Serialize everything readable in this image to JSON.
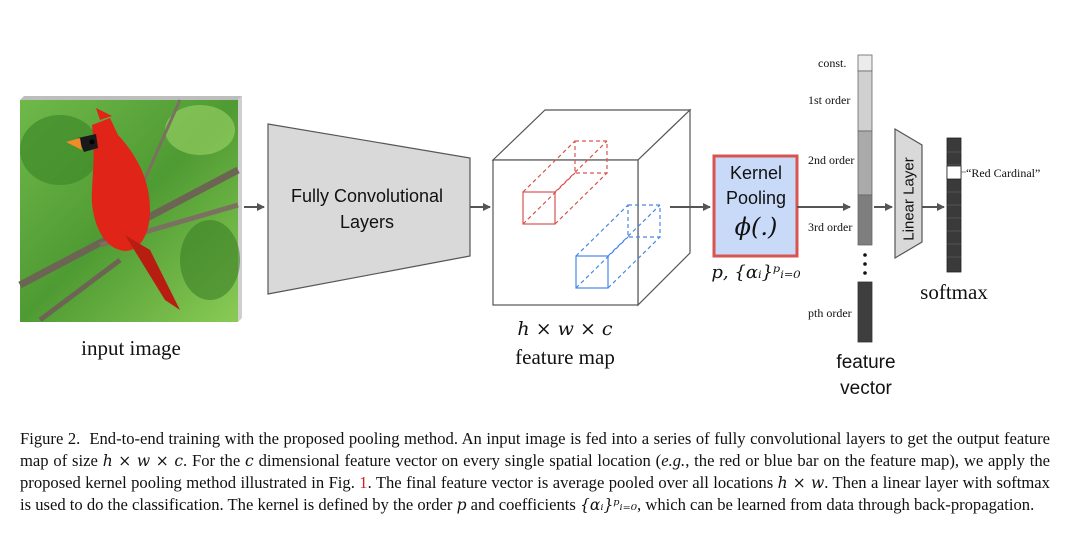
{
  "labels": {
    "input_image": "input image",
    "fc_layers_line1": "Fully Convolutional",
    "fc_layers_line2": "Layers",
    "feature_map_dims": "h × w × c",
    "feature_map": "feature map",
    "kernel_pooling_line1": "Kernel",
    "kernel_pooling_line2": "Pooling",
    "kernel_pooling_func": "ϕ(.)",
    "pooling_params": "p, {αᵢ}ᵖᵢ₌₀",
    "const": "const.",
    "order1": "1st order",
    "order2": "2nd order",
    "order3": "3rd order",
    "orderp": "pth order",
    "feature_vector_line1": "feature",
    "feature_vector_line2": "vector",
    "linear_layer": "Linear Layer",
    "red_cardinal": "“Red Cardinal”",
    "softmax": "softmax"
  },
  "colors": {
    "kernel_box_border": "#d9534f",
    "kernel_box_fill": "#c9daf8",
    "red_bar": "#d9534f",
    "blue_bar": "#4a86e8",
    "gray_block": "#d9d9d9",
    "arrow": "#555555"
  },
  "caption": {
    "fig_label": "Figure 2.",
    "s1": "End-to-end training with the proposed pooling method. An input image is fed into a series of fully convolutional layers to get the output feature map of size",
    "math_hwc": "h × w × c",
    "s2": ". For the",
    "math_c": "c",
    "s3": "dimensional feature vector on every single spatial location (",
    "eg": "e.g.",
    "s4": ", the red or blue bar on the feature map), we apply the proposed kernel pooling method illustrated in Fig.",
    "fig_ref": "1",
    "s5": ". The final feature vector is average pooled over all locations",
    "math_hw": "h × w",
    "s6": ". Then a linear layer with softmax is used to do the classification. The kernel is defined by the order",
    "math_p": "p",
    "s7": "and coefficients",
    "math_alpha": "{αᵢ}ᵖᵢ₌₀",
    "s8": ", which can be learned from data through back-propagation."
  }
}
